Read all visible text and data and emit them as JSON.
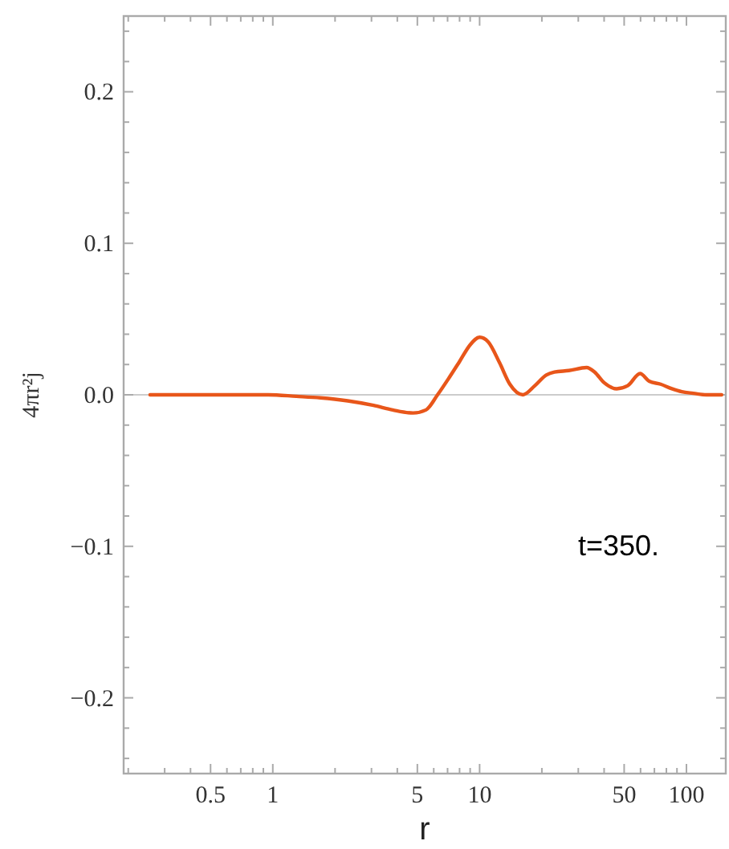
{
  "chart_data": {
    "type": "line",
    "xlabel": "r",
    "ylabel": "4πr²j",
    "log": "x",
    "grid": false,
    "marker": "none",
    "line_style": "solid",
    "xlim": [
      0.19,
      155
    ],
    "ylim": [
      -0.25,
      0.25
    ],
    "xticks": [
      {
        "value": 0.2,
        "label": null
      },
      {
        "value": 0.3,
        "label": null
      },
      {
        "value": 0.4,
        "label": null
      },
      0.5,
      {
        "value": 0.6,
        "label": null
      },
      {
        "value": 0.7,
        "label": null
      },
      {
        "value": 0.8,
        "label": null
      },
      {
        "value": 0.9,
        "label": null
      },
      1,
      {
        "value": 2,
        "label": null
      },
      {
        "value": 3,
        "label": null
      },
      {
        "value": 4,
        "label": null
      },
      5,
      {
        "value": 6,
        "label": null
      },
      {
        "value": 7,
        "label": null
      },
      {
        "value": 8,
        "label": null
      },
      {
        "value": 9,
        "label": null
      },
      10,
      {
        "value": 20,
        "label": null
      },
      {
        "value": 30,
        "label": null
      },
      {
        "value": 40,
        "label": null
      },
      50,
      {
        "value": 60,
        "label": null
      },
      {
        "value": 70,
        "label": null
      },
      {
        "value": 80,
        "label": null
      },
      {
        "value": 90,
        "label": null
      },
      100
    ],
    "yticks": [
      {
        "value": -0.24,
        "label": null
      },
      {
        "value": -0.22,
        "label": null
      },
      {
        "value": -0.2,
        "label": "−0.2"
      },
      {
        "value": -0.18,
        "label": null
      },
      {
        "value": -0.16,
        "label": null
      },
      {
        "value": -0.14,
        "label": null
      },
      {
        "value": -0.12,
        "label": null
      },
      {
        "value": -0.1,
        "label": "−0.1"
      },
      {
        "value": -0.08,
        "label": null
      },
      {
        "value": -0.06,
        "label": null
      },
      {
        "value": -0.04,
        "label": null
      },
      {
        "value": -0.02,
        "label": null
      },
      {
        "value": 0,
        "label": "0.0"
      },
      {
        "value": 0.02,
        "label": null
      },
      {
        "value": 0.04,
        "label": null
      },
      {
        "value": 0.06,
        "label": null
      },
      {
        "value": 0.08,
        "label": null
      },
      {
        "value": 0.1,
        "label": "0.1"
      },
      {
        "value": 0.12,
        "label": null
      },
      {
        "value": 0.14,
        "label": null
      },
      {
        "value": 0.16,
        "label": null
      },
      {
        "value": 0.18,
        "label": null
      },
      {
        "value": 0.2,
        "label": "0.2"
      },
      {
        "value": 0.22,
        "label": null
      },
      {
        "value": 0.24,
        "label": null
      }
    ],
    "ref_lines": [
      {
        "axis": "y",
        "value": 0,
        "color": "#cccccc"
      }
    ],
    "annotations": [
      "t=350."
    ],
    "series": [
      {
        "color": "#e8561a",
        "x": [
          0.255,
          0.5,
          0.95,
          1.3,
          1.7,
          2.3,
          3.07,
          3.8,
          4.77,
          5.5,
          6.26,
          7.1,
          8.0,
          9.0,
          10,
          11,
          12.5,
          14,
          16.2,
          18.5,
          21,
          23,
          27,
          32.9,
          36,
          40,
          46,
          52,
          59.7,
          66,
          75,
          85,
          95,
          108,
          125,
          148
        ],
        "values": [
          0,
          0,
          0,
          -0.001,
          -0.002,
          -0.004,
          -0.007,
          -0.01,
          -0.012,
          -0.01,
          0,
          0.011,
          0.022,
          0.033,
          0.038,
          0.035,
          0.021,
          0.007,
          0.0,
          0.006,
          0.013,
          0.015,
          0.016,
          0.018,
          0.015,
          0.008,
          0.004,
          0.006,
          0.014,
          0.009,
          0.007,
          0.004,
          0.002,
          0.001,
          0,
          0
        ]
      }
    ]
  }
}
